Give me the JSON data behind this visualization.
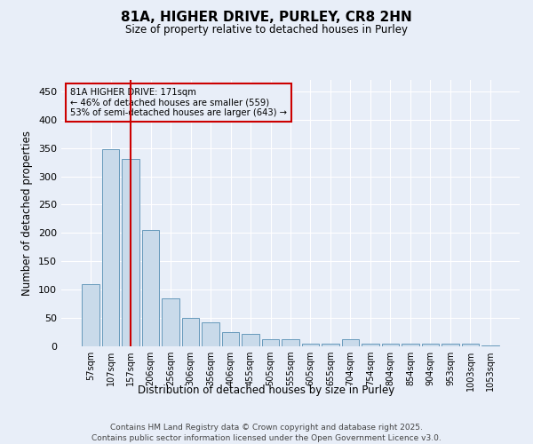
{
  "title": "81A, HIGHER DRIVE, PURLEY, CR8 2HN",
  "subtitle": "Size of property relative to detached houses in Purley",
  "xlabel": "Distribution of detached houses by size in Purley",
  "ylabel": "Number of detached properties",
  "bar_color": "#c9daea",
  "bar_edge_color": "#6699bb",
  "background_color": "#e8eef8",
  "bins": [
    "57sqm",
    "107sqm",
    "157sqm",
    "206sqm",
    "256sqm",
    "306sqm",
    "356sqm",
    "406sqm",
    "455sqm",
    "505sqm",
    "555sqm",
    "605sqm",
    "655sqm",
    "704sqm",
    "754sqm",
    "804sqm",
    "854sqm",
    "904sqm",
    "953sqm",
    "1003sqm",
    "1053sqm"
  ],
  "values": [
    110,
    348,
    330,
    205,
    85,
    50,
    42,
    25,
    22,
    12,
    12,
    5,
    5,
    12,
    5,
    5,
    5,
    5,
    5,
    5,
    2
  ],
  "vline_x": 2.0,
  "vline_color": "#cc0000",
  "annotation_text": "81A HIGHER DRIVE: 171sqm\n← 46% of detached houses are smaller (559)\n53% of semi-detached houses are larger (643) →",
  "ylim": [
    0,
    470
  ],
  "yticks": [
    0,
    50,
    100,
    150,
    200,
    250,
    300,
    350,
    400,
    450
  ],
  "footnote_line1": "Contains HM Land Registry data © Crown copyright and database right 2025.",
  "footnote_line2": "Contains public sector information licensed under the Open Government Licence v3.0."
}
